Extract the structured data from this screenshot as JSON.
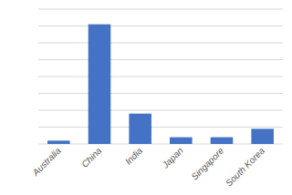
{
  "chart_data": {
    "type": "bar",
    "categories": [
      "Australia",
      "China",
      "India",
      "Japan",
      "Singapore",
      "South Korea"
    ],
    "values": [
      2,
      71,
      18,
      4,
      4,
      9
    ],
    "color": "#4472C4",
    "ylim": [
      0,
      80
    ],
    "yticks": [
      0,
      10,
      20,
      30,
      40,
      50,
      60,
      70,
      80
    ],
    "grid": true,
    "tick_labels": "x"
  }
}
